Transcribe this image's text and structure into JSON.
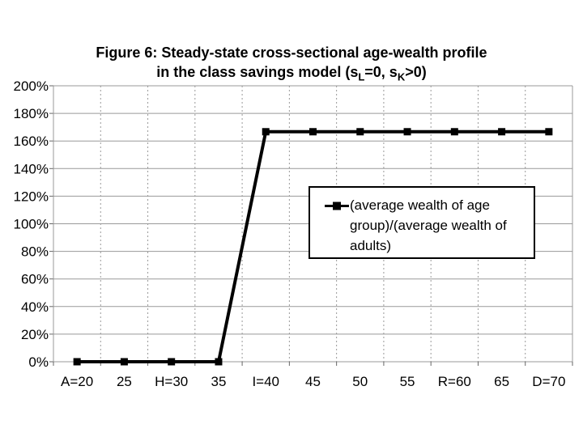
{
  "figure": {
    "title_line1": "Figure 6: Steady-state cross-sectional age-wealth profile",
    "title_line2": {
      "seg1": "in the class savings model (s",
      "sub1": "L",
      "seg2": "=0, s",
      "sub2": "K",
      "seg3": ">0)"
    }
  },
  "legend": {
    "label": "(average wealth of age group)/(average wealth of adults)",
    "marker": "black-square-on-line"
  },
  "colors": {
    "series": "#000000",
    "gridline": "#999999",
    "tick": "#666666",
    "background": "#ffffff",
    "text": "#000000"
  },
  "chart_data": {
    "type": "line",
    "title": "Figure 6: Steady-state cross-sectional age-wealth profile in the class savings model (sL=0, sK>0)",
    "categories": [
      "A=20",
      "25",
      "H=30",
      "35",
      "I=40",
      "45",
      "50",
      "55",
      "R=60",
      "65",
      "D=70"
    ],
    "series": [
      {
        "name": "(average wealth of age group)/(average wealth of adults)",
        "values": [
          0,
          0,
          0,
          0,
          166.7,
          166.7,
          166.7,
          166.7,
          166.7,
          166.7,
          166.7
        ]
      }
    ],
    "xlabel": "",
    "ylabel": "",
    "ylim": [
      0,
      200
    ],
    "y_tick_step": 20,
    "y_ticks": [
      "200%",
      "180%",
      "160%",
      "140%",
      "120%",
      "100%",
      "80%",
      "60%",
      "40%",
      "20%",
      "0%"
    ],
    "grid": "horizontal-solid and vertical-dashed-at-category-boundaries",
    "legend_position": "inside-middle-right",
    "marker": "square"
  }
}
